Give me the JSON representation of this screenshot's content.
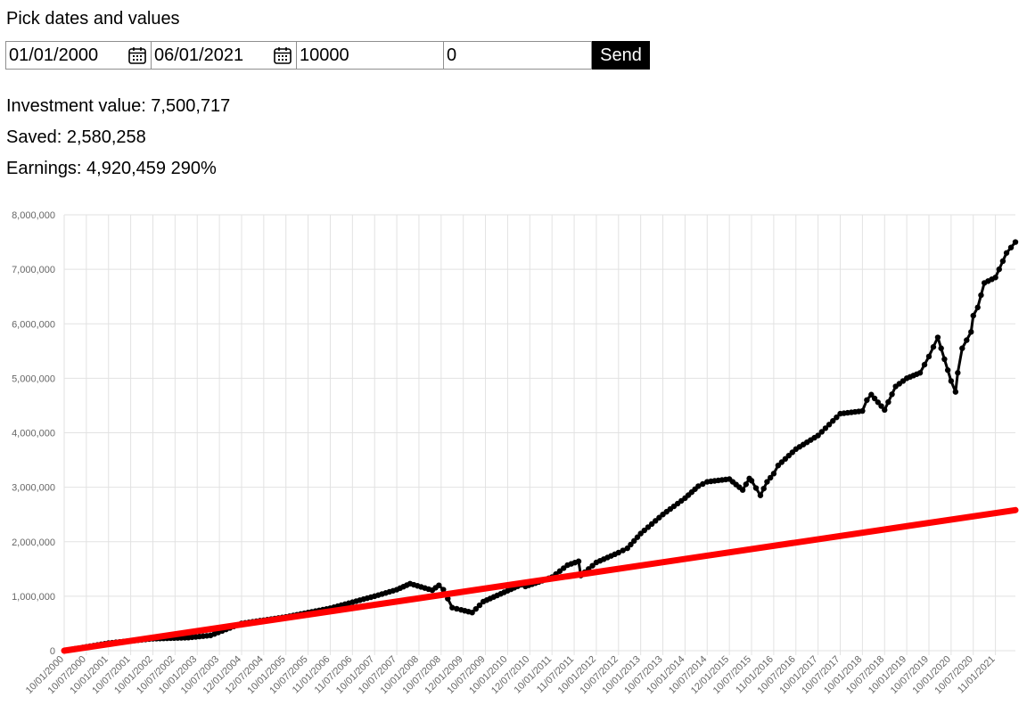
{
  "form": {
    "heading": "Pick dates and values",
    "start_date": "01/01/2000",
    "end_date": "06/01/2021",
    "amount": "10000",
    "extra": "0",
    "send_label": "Send",
    "calendar_icon": "calendar-icon"
  },
  "results": {
    "investment": "Investment value: 7,500,717",
    "saved": "Saved: 2,580,258",
    "earnings": "Earnings: 4,920,459 290%"
  },
  "chart_data": {
    "type": "line",
    "title": "",
    "xlabel": "",
    "ylabel": "",
    "ylim": [
      0,
      8000000
    ],
    "y_ticks": [
      "0",
      "1,000,000",
      "2,000,000",
      "3,000,000",
      "4,000,000",
      "5,000,000",
      "6,000,000",
      "7,000,000",
      "8,000,000"
    ],
    "x_tick_labels": [
      "10/01/2000",
      "10/07/2000",
      "10/01/2001",
      "10/07/2001",
      "10/01/2002",
      "10/07/2002",
      "10/01/2003",
      "10/07/2003",
      "12/01/2004",
      "12/07/2004",
      "10/01/2005",
      "10/07/2005",
      "11/01/2006",
      "11/07/2006",
      "10/01/2007",
      "10/07/2007",
      "10/01/2008",
      "10/07/2008",
      "12/01/2009",
      "10/07/2009",
      "10/01/2010",
      "12/07/2010",
      "10/01/2011",
      "11/07/2011",
      "10/01/2012",
      "10/07/2012",
      "10/01/2013",
      "10/07/2013",
      "10/01/2014",
      "10/07/2014",
      "12/01/2015",
      "10/07/2015",
      "11/01/2016",
      "10/07/2016",
      "10/01/2017",
      "10/07/2017",
      "10/01/2018",
      "10/07/2018",
      "10/01/2019",
      "10/07/2019",
      "10/01/2020",
      "10/07/2020",
      "11/01/2021"
    ],
    "grid": true,
    "legend": "none",
    "series": [
      {
        "color": "#000000",
        "x_years": [
          2000.0,
          2001.0,
          2002.0,
          2002.8,
          2003.3,
          2004.0,
          2005.0,
          2006.0,
          2007.0,
          2007.5,
          2007.8,
          2008.3,
          2008.45,
          2008.55,
          2008.75,
          2008.95,
          2009.2,
          2009.45,
          2010.0,
          2010.3,
          2010.4,
          2010.7,
          2011.0,
          2011.35,
          2011.6,
          2011.65,
          2012.0,
          2012.5,
          2012.7,
          2013.0,
          2013.5,
          2014.0,
          2014.3,
          2014.5,
          2015.0,
          2015.3,
          2015.45,
          2015.5,
          2015.7,
          2015.85,
          2016.0,
          2016.1,
          2016.5,
          2017.0,
          2017.5,
          2018.0,
          2018.1,
          2018.2,
          2018.5,
          2018.75,
          2019.0,
          2019.3,
          2019.5,
          2019.7,
          2020.0,
          2020.1,
          2020.15,
          2020.25,
          2020.45,
          2020.5,
          2020.6,
          2020.75,
          2021.0,
          2021.25,
          2021.45
        ],
        "values": [
          0,
          140000,
          220000,
          240000,
          280000,
          500000,
          620000,
          780000,
          1000000,
          1120000,
          1230000,
          1110000,
          1200000,
          1120000,
          790000,
          750000,
          700000,
          900000,
          1100000,
          1210000,
          1180000,
          1260000,
          1350000,
          1570000,
          1640000,
          1380000,
          1620000,
          1800000,
          1880000,
          2150000,
          2500000,
          2800000,
          3020000,
          3100000,
          3150000,
          2950000,
          3160000,
          3120000,
          2850000,
          3100000,
          3250000,
          3400000,
          3700000,
          3950000,
          4350000,
          4400000,
          4600000,
          4700000,
          4420000,
          4850000,
          5000000,
          5100000,
          5400000,
          5750000,
          4950000,
          4750000,
          5100000,
          5550000,
          5850000,
          6150000,
          6300000,
          6750000,
          6850000,
          7300000,
          7500000
        ]
      },
      {
        "color": "#ff0000",
        "x_years": [
          2000.0,
          2021.45
        ],
        "values": [
          0,
          2580258
        ]
      }
    ]
  }
}
